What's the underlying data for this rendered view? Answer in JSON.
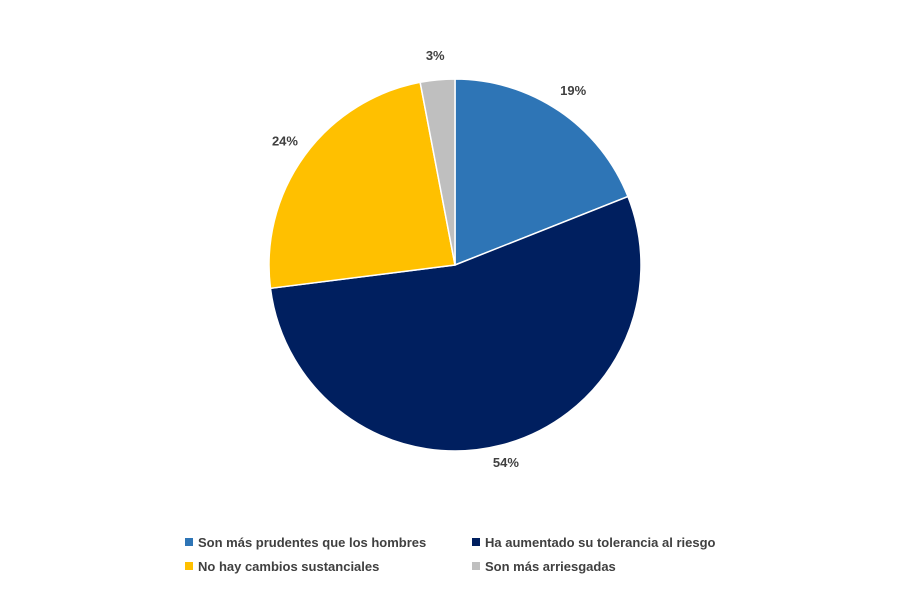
{
  "chart_data": {
    "type": "pie",
    "categories": [
      "Son más prudentes que los hombres",
      "Ha aumentado su tolerancia al riesgo",
      "No hay cambios sustanciales",
      "Son más arriesgadas"
    ],
    "values": [
      19,
      54,
      24,
      3
    ],
    "data_labels": [
      "19%",
      "54%",
      "24%",
      "3%"
    ],
    "colors": [
      "#2E75B6",
      "#001F5F",
      "#FFC000",
      "#BFBFBF"
    ],
    "start_angle_deg": 0,
    "direction": "clockwise",
    "legend_position": "bottom"
  }
}
